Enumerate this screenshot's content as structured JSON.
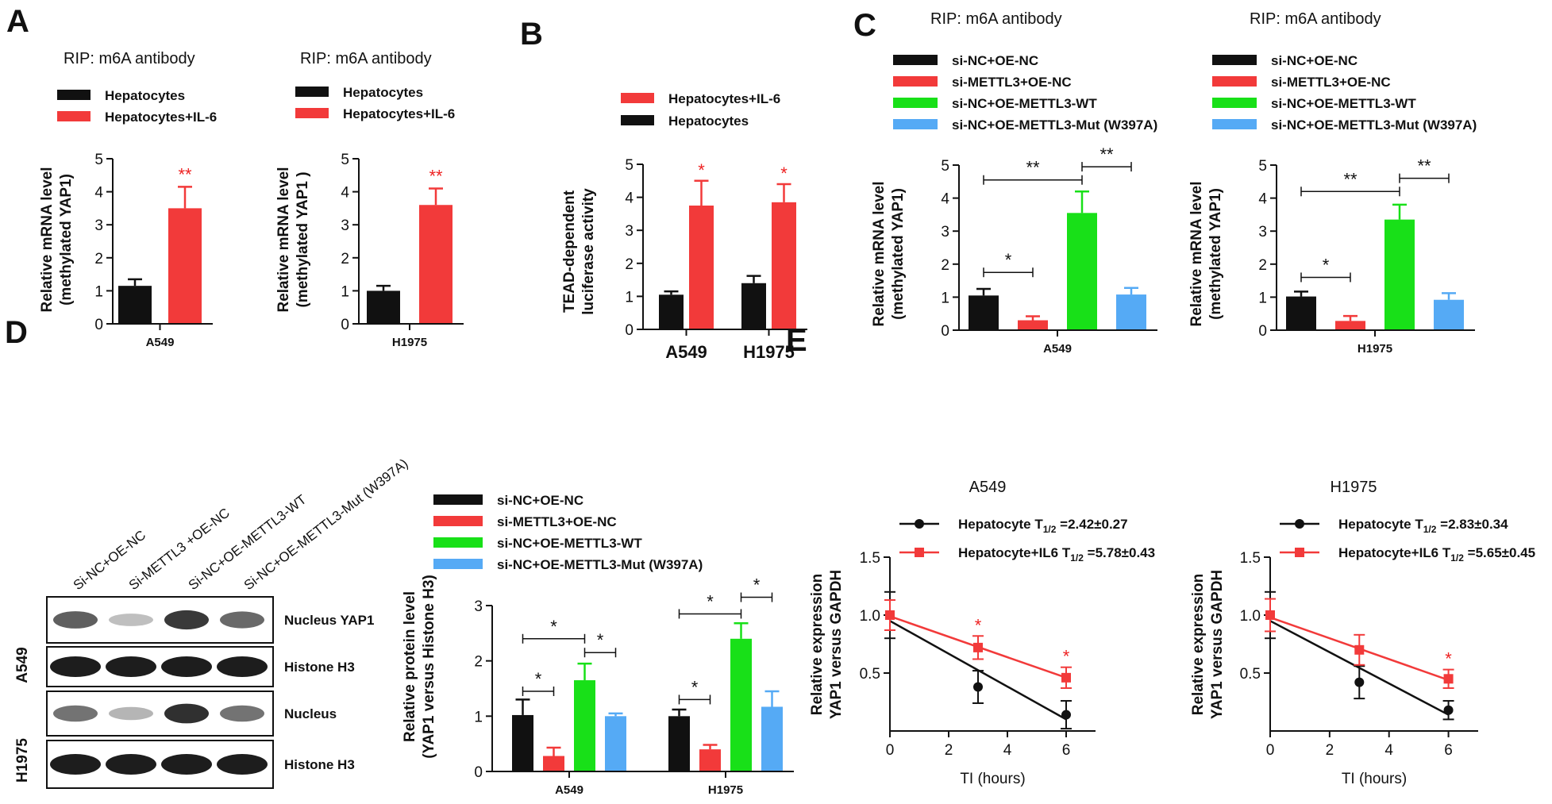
{
  "colors": {
    "black": "#111111",
    "red": "#f23a3a",
    "green": "#18e018",
    "blue": "#55aaf5",
    "star_red": "#ee2222"
  },
  "panels": {
    "A": {
      "letter": "A"
    },
    "B": {
      "letter": "B"
    },
    "C": {
      "letter": "C"
    },
    "D": {
      "letter": "D"
    },
    "E": {
      "letter": "E"
    }
  },
  "western_blot": {
    "lane_labels": [
      "Si-NC+OE-NC",
      "Si-METTL3 +OE-NC",
      "Si-NC+OE-METTL3-WT",
      "Si-NC+OE-METTL3-Mut (W397A)"
    ],
    "row_labels": [
      "Nucleus YAP1",
      "Histone H3",
      "Nucleus",
      "Histone H3"
    ],
    "cell_labels": [
      "A549",
      "H1975"
    ]
  },
  "chart_data": [
    {
      "id": "A-A549",
      "type": "bar",
      "title": "RIP: m6A antibody",
      "legend": [
        "Hepatocytes",
        "Hepatocytes+IL-6"
      ],
      "ylabel": [
        "Relative mRNA level",
        "(methylated YAP1)"
      ],
      "xlabel": "A549",
      "ylim": [
        0,
        5
      ],
      "yticks": [
        0,
        1,
        2,
        3,
        4,
        5
      ],
      "categories": [
        "A549"
      ],
      "series": [
        {
          "name": "Hepatocytes",
          "color": "black",
          "values": [
            1.15
          ],
          "errors": [
            0.2
          ]
        },
        {
          "name": "Hepatocytes+IL-6",
          "color": "red",
          "values": [
            3.5
          ],
          "errors": [
            0.65
          ]
        }
      ],
      "annotations": [
        {
          "text": "**",
          "bar": 1,
          "color": "star_red"
        }
      ]
    },
    {
      "id": "A-H1975",
      "type": "bar",
      "title": "RIP: m6A antibody",
      "legend": [
        "Hepatocytes",
        "Hepatocytes+IL-6"
      ],
      "ylabel": [
        "Relative mRNA level",
        "(methylated YAP1 )"
      ],
      "xlabel": "H1975",
      "ylim": [
        0,
        5
      ],
      "yticks": [
        0,
        1,
        2,
        3,
        4,
        5
      ],
      "categories": [
        "H1975"
      ],
      "series": [
        {
          "name": "Hepatocytes",
          "color": "black",
          "values": [
            1.0
          ],
          "errors": [
            0.15
          ]
        },
        {
          "name": "Hepatocytes+IL-6",
          "color": "red",
          "values": [
            3.6
          ],
          "errors": [
            0.5
          ]
        }
      ],
      "annotations": [
        {
          "text": "**",
          "bar": 1,
          "color": "star_red"
        }
      ]
    },
    {
      "id": "B",
      "type": "bar",
      "legend": [
        "Hepatocytes+IL-6",
        "Hepatocytes"
      ],
      "ylabel": [
        "TEAD-dependent",
        "luciferase activity"
      ],
      "ylim": [
        0,
        5
      ],
      "yticks": [
        0,
        1,
        2,
        3,
        4,
        5
      ],
      "categories": [
        "A549",
        "H1975"
      ],
      "series": [
        {
          "name": "Hepatocytes",
          "color": "black",
          "values": [
            1.05,
            1.4
          ],
          "errors": [
            0.1,
            0.22
          ]
        },
        {
          "name": "Hepatocytes+IL-6",
          "color": "red",
          "values": [
            3.75,
            3.85
          ],
          "errors": [
            0.75,
            0.55
          ]
        }
      ],
      "annotations": [
        {
          "text": "*",
          "bar": "red-each",
          "color": "star_red"
        }
      ]
    },
    {
      "id": "C-A549",
      "type": "bar",
      "title": "RIP: m6A antibody",
      "legend": [
        "si-NC+OE-NC",
        "si-METTL3+OE-NC",
        "si-NC+OE-METTL3-WT",
        "si-NC+OE-METTL3-Mut (W397A)"
      ],
      "ylabel": [
        "Relative mRNA level",
        "(methylated YAP1)"
      ],
      "xlabel": "A549",
      "ylim": [
        0,
        5
      ],
      "yticks": [
        0,
        1,
        2,
        3,
        4,
        5
      ],
      "categories": [
        "A549"
      ],
      "series": [
        {
          "name": "si-NC+OE-NC",
          "color": "black",
          "values": [
            1.05
          ],
          "errors": [
            0.2
          ]
        },
        {
          "name": "si-METTL3+OE-NC",
          "color": "red",
          "values": [
            0.3
          ],
          "errors": [
            0.12
          ]
        },
        {
          "name": "si-NC+OE-METTL3-WT",
          "color": "green",
          "values": [
            3.55
          ],
          "errors": [
            0.65
          ]
        },
        {
          "name": "si-NC+OE-METTL3-Mut (W397A)",
          "color": "blue",
          "values": [
            1.08
          ],
          "errors": [
            0.2
          ]
        }
      ],
      "brackets": [
        {
          "from": 0,
          "to": 1,
          "y": 1.75,
          "text": "*"
        },
        {
          "from": 0,
          "to": 2,
          "y": 4.55,
          "text": "**"
        },
        {
          "from": 2,
          "to": 3,
          "y": 4.95,
          "text": "**"
        }
      ]
    },
    {
      "id": "C-H1975",
      "type": "bar",
      "title": "RIP: m6A antibody",
      "legend": [
        "si-NC+OE-NC",
        "si-METTL3+OE-NC",
        "si-NC+OE-METTL3-WT",
        "si-NC+OE-METTL3-Mut (W397A)"
      ],
      "ylabel": [
        "Relative mRNA level",
        "(methylated YAP1)"
      ],
      "xlabel": "H1975",
      "ylim": [
        0,
        5
      ],
      "yticks": [
        0,
        1,
        2,
        3,
        4,
        5
      ],
      "categories": [
        "H1975"
      ],
      "series": [
        {
          "name": "si-NC+OE-NC",
          "color": "black",
          "values": [
            1.02
          ],
          "errors": [
            0.15
          ]
        },
        {
          "name": "si-METTL3+OE-NC",
          "color": "red",
          "values": [
            0.28
          ],
          "errors": [
            0.15
          ]
        },
        {
          "name": "si-NC+OE-METTL3-WT",
          "color": "green",
          "values": [
            3.35
          ],
          "errors": [
            0.45
          ]
        },
        {
          "name": "si-NC+OE-METTL3-Mut (W397A)",
          "color": "blue",
          "values": [
            0.92
          ],
          "errors": [
            0.2
          ]
        }
      ],
      "brackets": [
        {
          "from": 0,
          "to": 1,
          "y": 1.6,
          "text": "*"
        },
        {
          "from": 0,
          "to": 2,
          "y": 4.2,
          "text": "**"
        },
        {
          "from": 2,
          "to": 3,
          "y": 4.6,
          "text": "**"
        }
      ]
    },
    {
      "id": "D-quant",
      "type": "bar",
      "legend": [
        "si-NC+OE-NC",
        "si-METTL3+OE-NC",
        "si-NC+OE-METTL3-WT",
        "si-NC+OE-METTL3-Mut (W397A)"
      ],
      "ylabel": [
        "Relative protein level",
        "(YAP1 versus Histone H3)"
      ],
      "ylim": [
        0,
        3
      ],
      "yticks": [
        0,
        1,
        2,
        3
      ],
      "categories": [
        "A549",
        "H1975"
      ],
      "series": [
        {
          "name": "si-NC+OE-NC",
          "color": "black",
          "values": [
            1.02,
            1.0
          ],
          "errors": [
            0.28,
            0.12
          ]
        },
        {
          "name": "si-METTL3+OE-NC",
          "color": "red",
          "values": [
            0.28,
            0.4
          ],
          "errors": [
            0.15,
            0.08
          ]
        },
        {
          "name": "si-NC+OE-METTL3-WT",
          "color": "green",
          "values": [
            1.65,
            2.4
          ],
          "errors": [
            0.3,
            0.28
          ]
        },
        {
          "name": "si-NC+OE-METTL3-Mut (W397A)",
          "color": "blue",
          "values": [
            1.0,
            1.17
          ],
          "errors": [
            0.05,
            0.28
          ]
        }
      ],
      "brackets": [
        {
          "cat": 0,
          "from": 0,
          "to": 1,
          "y": 1.45,
          "text": "*"
        },
        {
          "cat": 0,
          "from": 0,
          "to": 2,
          "y": 2.4,
          "text": "*"
        },
        {
          "cat": 0,
          "from": 2,
          "to": 3,
          "y": 2.15,
          "text": "*"
        },
        {
          "cat": 1,
          "from": 0,
          "to": 1,
          "y": 1.3,
          "text": "*"
        },
        {
          "cat": 1,
          "from": 0,
          "to": 2,
          "y": 2.85,
          "text": "*"
        },
        {
          "cat": 1,
          "from": 2,
          "to": 3,
          "y": 3.15,
          "text": "*"
        }
      ]
    },
    {
      "id": "E-A549",
      "type": "line",
      "title": "A549",
      "xlabel": "TI (hours)",
      "ylabel": [
        "Relative expression",
        "YAP1 versus GAPDH"
      ],
      "xlim": [
        0,
        7
      ],
      "ylim": [
        0,
        1.5
      ],
      "xticks": [
        0,
        2,
        4,
        6
      ],
      "yticks": [
        0.5,
        1.0,
        1.5
      ],
      "series": [
        {
          "name": "Hepatocyte",
          "t_half": "=2.42±0.27",
          "color": "black",
          "marker": "circle",
          "x": [
            0,
            3,
            6
          ],
          "y": [
            1.0,
            0.38,
            0.14
          ],
          "errors": [
            0.2,
            0.14,
            0.12
          ],
          "fit": [
            0.95,
            0.1
          ]
        },
        {
          "name": "Hepatocyte+IL6",
          "t_half": "=5.78±0.43",
          "color": "red",
          "marker": "square",
          "x": [
            0,
            3,
            6
          ],
          "y": [
            1.0,
            0.72,
            0.46
          ],
          "errors": [
            0.13,
            0.1,
            0.09
          ],
          "fit": [
            0.99,
            0.46
          ]
        }
      ],
      "stars_at_x": [
        3,
        6
      ]
    },
    {
      "id": "E-H1975",
      "type": "line",
      "title": "H1975",
      "xlabel": "TI (hours)",
      "ylabel": [
        "Relative expression",
        "YAP1 versus GAPDH"
      ],
      "xlim": [
        0,
        7
      ],
      "ylim": [
        0,
        1.5
      ],
      "xticks": [
        0,
        2,
        4,
        6
      ],
      "yticks": [
        0.5,
        1.0,
        1.5
      ],
      "series": [
        {
          "name": "Hepatocyte",
          "t_half": "=2.83±0.34",
          "color": "black",
          "marker": "circle",
          "x": [
            0,
            3,
            6
          ],
          "y": [
            1.0,
            0.42,
            0.18
          ],
          "errors": [
            0.2,
            0.14,
            0.08
          ],
          "fit": [
            0.95,
            0.14
          ]
        },
        {
          "name": "Hepatocyte+IL6",
          "t_half": "=5.65±0.45",
          "color": "red",
          "marker": "square",
          "x": [
            0,
            3,
            6
          ],
          "y": [
            1.0,
            0.7,
            0.45
          ],
          "errors": [
            0.14,
            0.13,
            0.08
          ],
          "fit": [
            0.98,
            0.44
          ]
        }
      ],
      "stars_at_x": [
        6
      ]
    }
  ]
}
